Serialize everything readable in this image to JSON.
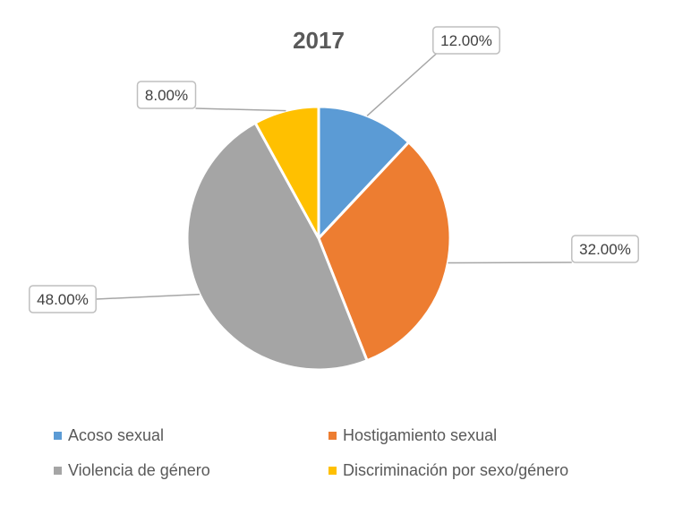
{
  "chart_data": {
    "type": "pie",
    "title": "2017",
    "categories": [
      "Acoso sexual",
      "Hostigamiento sexual",
      "Violencia de género",
      "Discriminación por sexo/género"
    ],
    "values": [
      12,
      32,
      48,
      8
    ],
    "data_labels": [
      "12.00%",
      "32.00%",
      "48.00%",
      "8.00%"
    ],
    "colors": [
      "#5b9bd5",
      "#ed7d31",
      "#a5a5a5",
      "#ffc000"
    ],
    "legend_position": "bottom"
  }
}
